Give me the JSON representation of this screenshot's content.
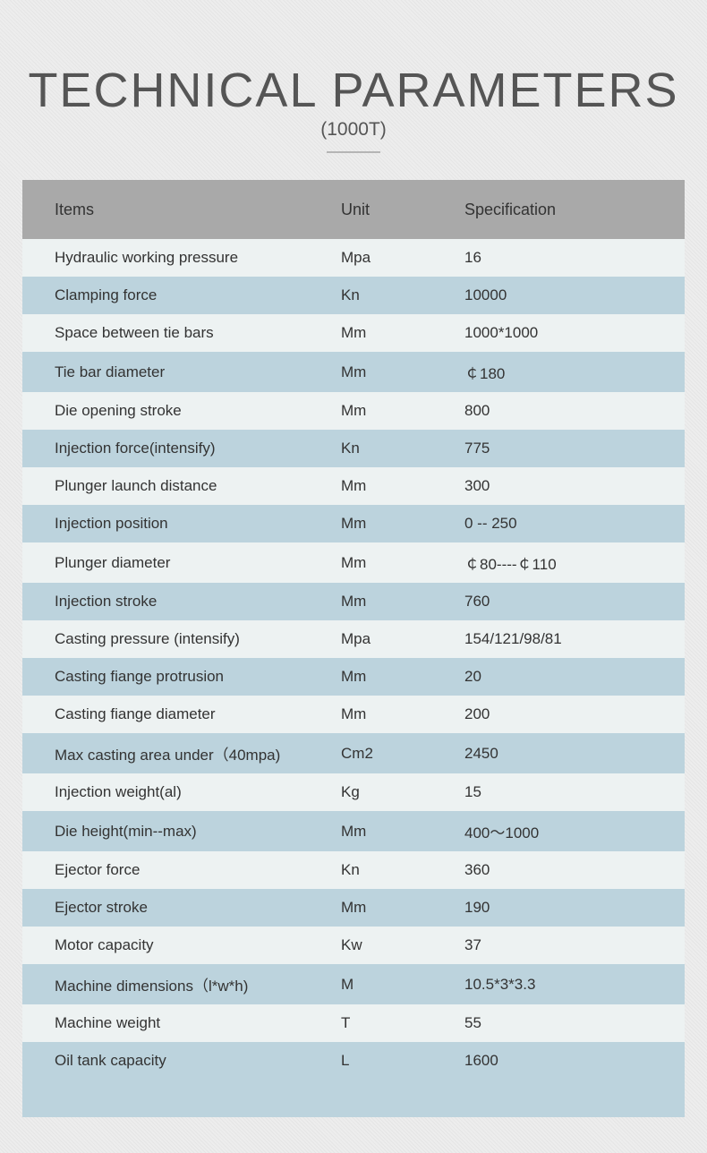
{
  "title": "TECHNICAL PARAMETERS",
  "subtitle": "(1000T)",
  "table": {
    "header": {
      "col1": "Items",
      "col2": "Unit",
      "col3": "Specification"
    },
    "rows": [
      {
        "item": "Hydraulic working pressure",
        "unit": "Mpa",
        "spec": "16"
      },
      {
        "item": "Clamping force",
        "unit": "Kn",
        "spec": "10000"
      },
      {
        "item": "Space between tie bars",
        "unit": "Mm",
        "spec": "1000*1000"
      },
      {
        "item": "Tie bar diameter",
        "unit": "Mm",
        "spec": "￠180"
      },
      {
        "item": "Die opening stroke",
        "unit": "Mm",
        "spec": "800"
      },
      {
        "item": "Injection force(intensify)",
        "unit": "Kn",
        "spec": "775"
      },
      {
        "item": "Plunger launch distance",
        "unit": "Mm",
        "spec": "300"
      },
      {
        "item": "Injection position",
        "unit": "Mm",
        "spec": "0  --  250"
      },
      {
        "item": "Plunger diameter",
        "unit": "Mm",
        "spec": "￠80----￠110"
      },
      {
        "item": "Injection stroke",
        "unit": "Mm",
        "spec": "760"
      },
      {
        "item": "Casting pressure (intensify)",
        "unit": "Mpa",
        "spec": "154/121/98/81"
      },
      {
        "item": "Casting fiange protrusion",
        "unit": "Mm",
        "spec": "20"
      },
      {
        "item": "Casting fiange diameter",
        "unit": "Mm",
        "spec": "200"
      },
      {
        "item": "Max casting area under（40mpa)",
        "unit": "Cm2",
        "spec": "2450"
      },
      {
        "item": "Injection weight(al)",
        "unit": "Kg",
        "spec": "15"
      },
      {
        "item": "Die height(min--max)",
        "unit": "Mm",
        "spec": "400～1000"
      },
      {
        "item": "Ejector force",
        "unit": "Kn",
        "spec": "360"
      },
      {
        "item": "Ejector stroke",
        "unit": "Mm",
        "spec": "190"
      },
      {
        "item": "Motor capacity",
        "unit": "Kw",
        "spec": "37"
      },
      {
        "item": "Machine dimensions（l*w*h)",
        "unit": "M",
        "spec": "10.5*3*3.3"
      },
      {
        "item": "Machine weight",
        "unit": "T",
        "spec": "55"
      },
      {
        "item": "Oil tank capacity",
        "unit": "L",
        "spec": "1600"
      }
    ]
  },
  "styling": {
    "title_color": "#555555",
    "title_fontsize": 54,
    "subtitle_fontsize": 21,
    "header_bg": "#a9a9a9",
    "row_light_bg": "#edf2f2",
    "row_dark_bg": "#bcd3dd",
    "text_color": "#333333",
    "cell_fontsize": 17,
    "header_fontsize": 18,
    "page_bg_a": "#e5e5e5",
    "page_bg_b": "#ededed",
    "divider_color": "#b5b5b5",
    "col_widths": {
      "item": 356,
      "unit": 138
    }
  }
}
